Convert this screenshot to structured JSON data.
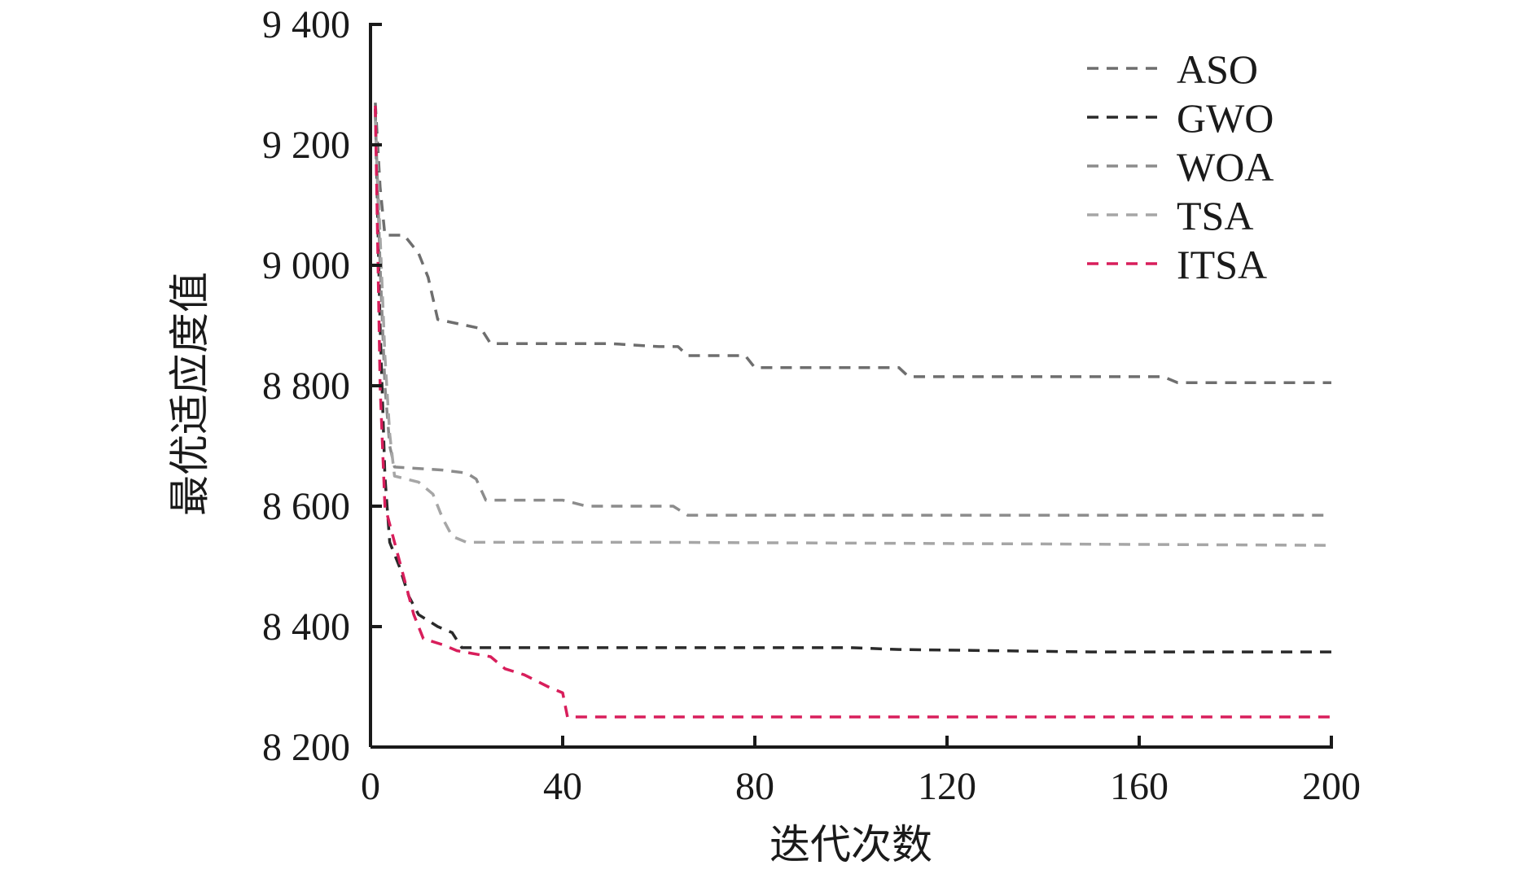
{
  "chart_data": {
    "type": "line",
    "title": "",
    "xlabel": "迭代次数",
    "ylabel": "最优适应度值",
    "xlim": [
      0,
      200
    ],
    "ylim": [
      8200,
      9400
    ],
    "x_ticks": [
      0,
      40,
      80,
      120,
      160,
      200
    ],
    "y_ticks": [
      8200,
      8400,
      8600,
      8800,
      9000,
      9200,
      9400
    ],
    "x_tick_labels": [
      "0",
      "40",
      "80",
      "120",
      "160",
      "200"
    ],
    "y_tick_labels": [
      "8 200",
      "8 400",
      "8 600",
      "8 800",
      "9 000",
      "9 200",
      "9 400"
    ],
    "legend_position": "top-right",
    "line_style": "dashed",
    "series": [
      {
        "name": "ASO",
        "color": "#6e6e6e",
        "points": [
          [
            1,
            9270
          ],
          [
            2,
            9130
          ],
          [
            3,
            9050
          ],
          [
            7,
            9050
          ],
          [
            10,
            9020
          ],
          [
            12,
            8980
          ],
          [
            14,
            8910
          ],
          [
            20,
            8900
          ],
          [
            23,
            8895
          ],
          [
            25,
            8870
          ],
          [
            40,
            8870
          ],
          [
            50,
            8870
          ],
          [
            60,
            8865
          ],
          [
            64,
            8865
          ],
          [
            66,
            8850
          ],
          [
            78,
            8850
          ],
          [
            80,
            8830
          ],
          [
            110,
            8830
          ],
          [
            112,
            8815
          ],
          [
            165,
            8815
          ],
          [
            168,
            8805
          ],
          [
            200,
            8805
          ]
        ]
      },
      {
        "name": "GWO",
        "color": "#2a2a2a",
        "points": [
          [
            1,
            9260
          ],
          [
            2,
            8900
          ],
          [
            3,
            8650
          ],
          [
            4,
            8540
          ],
          [
            6,
            8500
          ],
          [
            8,
            8450
          ],
          [
            10,
            8420
          ],
          [
            12,
            8410
          ],
          [
            14,
            8400
          ],
          [
            17,
            8390
          ],
          [
            19,
            8365
          ],
          [
            60,
            8365
          ],
          [
            100,
            8365
          ],
          [
            110,
            8362
          ],
          [
            130,
            8360
          ],
          [
            150,
            8358
          ],
          [
            200,
            8358
          ]
        ]
      },
      {
        "name": "WOA",
        "color": "#8c8c8c",
        "points": [
          [
            1,
            9250
          ],
          [
            2,
            9000
          ],
          [
            3,
            8800
          ],
          [
            4,
            8700
          ],
          [
            5,
            8665
          ],
          [
            15,
            8660
          ],
          [
            20,
            8655
          ],
          [
            22,
            8645
          ],
          [
            24,
            8610
          ],
          [
            40,
            8610
          ],
          [
            45,
            8600
          ],
          [
            63,
            8600
          ],
          [
            66,
            8585
          ],
          [
            200,
            8585
          ]
        ]
      },
      {
        "name": "TSA",
        "color": "#a6a6a6",
        "points": [
          [
            1,
            9240
          ],
          [
            2,
            9050
          ],
          [
            3,
            8850
          ],
          [
            4,
            8720
          ],
          [
            5,
            8650
          ],
          [
            10,
            8640
          ],
          [
            13,
            8620
          ],
          [
            15,
            8580
          ],
          [
            17,
            8550
          ],
          [
            20,
            8540
          ],
          [
            60,
            8540
          ],
          [
            120,
            8538
          ],
          [
            200,
            8535
          ]
        ]
      },
      {
        "name": "ITSA",
        "color": "#d81e5b",
        "points": [
          [
            1,
            9265
          ],
          [
            2,
            8800
          ],
          [
            3,
            8600
          ],
          [
            5,
            8540
          ],
          [
            7,
            8480
          ],
          [
            9,
            8420
          ],
          [
            11,
            8380
          ],
          [
            15,
            8370
          ],
          [
            18,
            8360
          ],
          [
            25,
            8350
          ],
          [
            28,
            8330
          ],
          [
            32,
            8320
          ],
          [
            37,
            8300
          ],
          [
            40,
            8290
          ],
          [
            41,
            8250
          ],
          [
            200,
            8250
          ]
        ]
      }
    ]
  }
}
